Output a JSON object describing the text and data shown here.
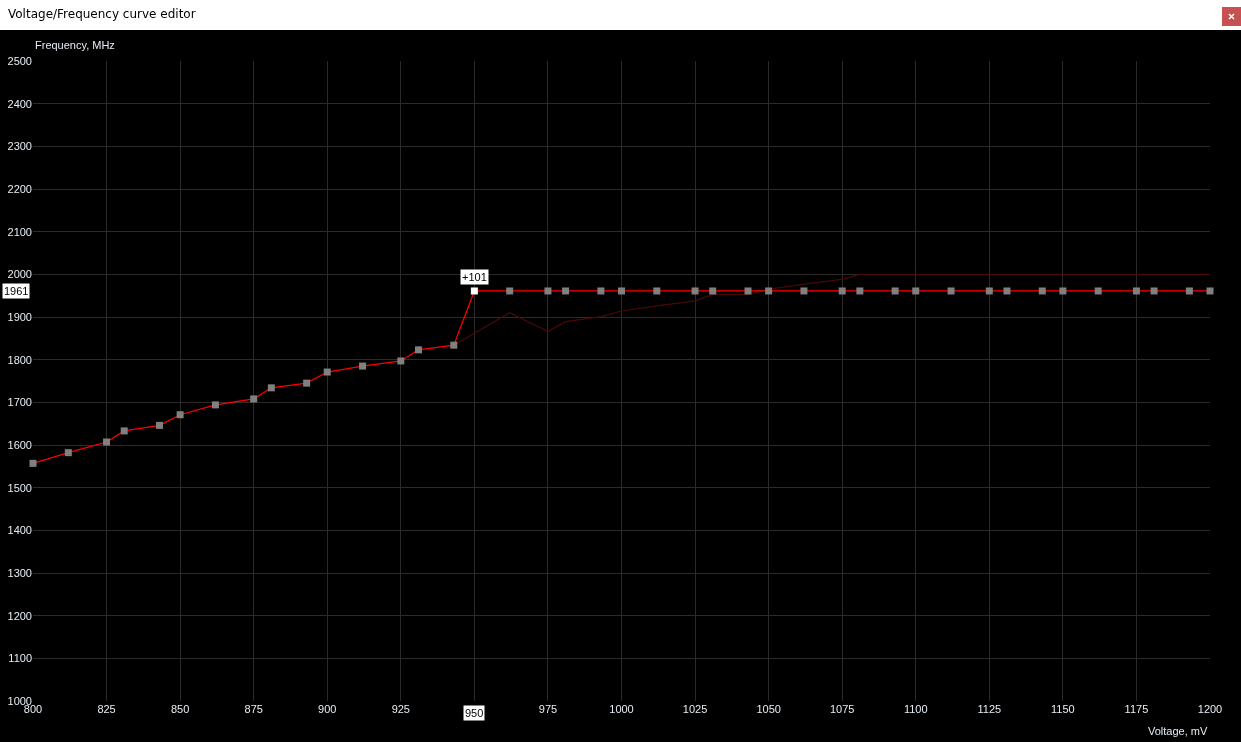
{
  "chart_data": {
    "type": "line",
    "title": "Voltage/Frequency curve editor",
    "xlabel": "Voltage, mV",
    "ylabel": "Frequency, MHz",
    "xlim": [
      800,
      1200
    ],
    "xticks": [
      800,
      825,
      850,
      875,
      900,
      925,
      {
        "value": 950,
        "label": null
      },
      975,
      1000,
      1025,
      1050,
      1075,
      1100,
      1125,
      1150,
      1175,
      1200
    ],
    "ylim": [
      1000,
      2500
    ],
    "yticks": [
      1000,
      1100,
      1200,
      1300,
      1400,
      1500,
      1600,
      1700,
      1800,
      1900,
      2000,
      2100,
      2200,
      2300,
      2400,
      2500
    ],
    "grid": true,
    "marker": "square",
    "series": [
      {
        "color": "#4a0808",
        "marker": "none",
        "x": [
          943,
          962,
          975,
          981,
          993,
          1000,
          1012,
          1025,
          1031,
          1043,
          1050,
          1062,
          1075,
          1081,
          1200
        ],
        "values": [
          1834,
          1910,
          1866,
          1889,
          1901,
          1914,
          1926,
          1938,
          1953,
          1953,
          1965,
          1977,
          1988,
          2000,
          2000
        ]
      },
      {
        "color": "#ff0000",
        "colors": [
          "#808080",
          "#808080",
          "#808080",
          "#808080",
          "#808080",
          "#808080",
          "#808080",
          "#808080",
          "#808080",
          "#808080",
          "#808080",
          "#808080",
          "#808080",
          "#808080",
          "#808080",
          "#ffffff",
          "#808080",
          "#808080",
          "#808080",
          "#808080",
          "#808080",
          "#808080",
          "#808080",
          "#808080",
          "#808080",
          "#808080",
          "#808080",
          "#808080",
          "#808080",
          "#808080",
          "#808080",
          "#808080",
          "#808080",
          "#808080",
          "#808080",
          "#808080",
          "#808080",
          "#808080",
          "#808080",
          "#808080",
          "#808080"
        ],
        "x": [
          800,
          812,
          825,
          831,
          843,
          850,
          862,
          875,
          881,
          893,
          900,
          912,
          925,
          931,
          943,
          950,
          962,
          975,
          981,
          993,
          1000,
          1012,
          1025,
          1031,
          1043,
          1050,
          1062,
          1075,
          1081,
          1093,
          1100,
          1112,
          1125,
          1131,
          1143,
          1150,
          1162,
          1175,
          1181,
          1193,
          1200
        ],
        "values": [
          1557,
          1582,
          1607,
          1633,
          1646,
          1671,
          1694,
          1708,
          1734,
          1745,
          1771,
          1785,
          1797,
          1823,
          1834,
          1961,
          1961,
          1961,
          1961,
          1961,
          1961,
          1961,
          1961,
          1961,
          1961,
          1961,
          1961,
          1961,
          1961,
          1961,
          1961,
          1961,
          1961,
          1961,
          1961,
          1961,
          1961,
          1961,
          1961,
          1961,
          1961
        ]
      }
    ],
    "annotations": [
      {
        "text": "+101",
        "x": 950,
        "y": 1961
      },
      "1961",
      "950"
    ]
  }
}
